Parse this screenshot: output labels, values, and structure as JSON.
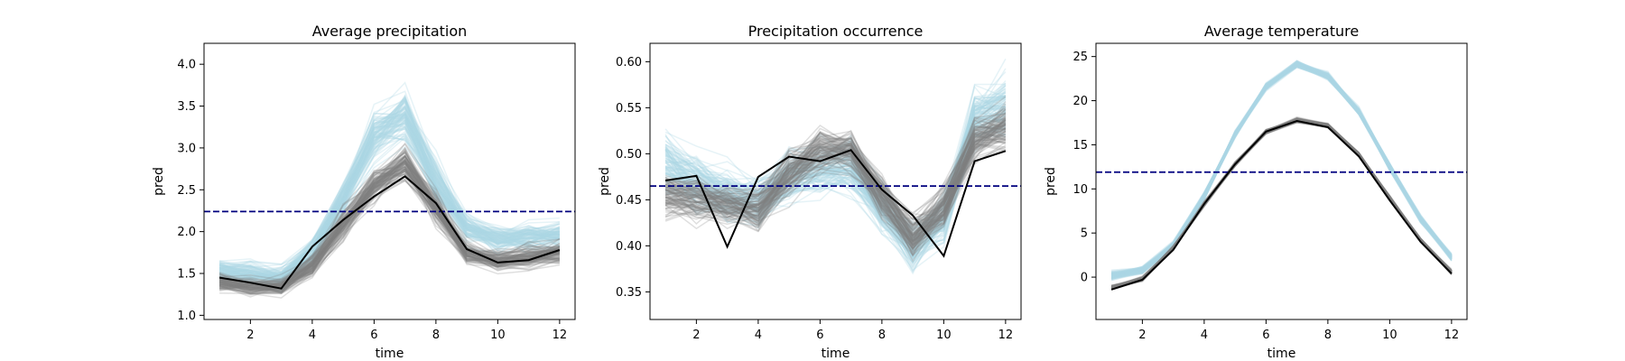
{
  "chart_data": [
    {
      "type": "line",
      "title": "Average precipitation",
      "xlabel": "time",
      "ylabel": "pred",
      "xlim": [
        0.5,
        12.5
      ],
      "ylim": [
        0.95,
        4.25
      ],
      "xticks": [
        2,
        4,
        6,
        8,
        10,
        12
      ],
      "yticks": [
        1.0,
        1.5,
        2.0,
        2.5,
        3.0,
        3.5,
        4.0
      ],
      "ytick_labels": [
        "1.0",
        "1.5",
        "2.0",
        "2.5",
        "3.0",
        "3.5",
        "4.0"
      ],
      "x": [
        1,
        2,
        3,
        4,
        5,
        6,
        7,
        8,
        9,
        10,
        11,
        12
      ],
      "reference_line": {
        "y": 2.24,
        "color": "#00007f",
        "style": "dashed"
      },
      "ensembles": [
        {
          "color": "#add8e6",
          "alpha": 0.3,
          "count": 100,
          "spread": [
            0.2,
            0.2,
            0.2,
            0.25,
            0.3,
            0.45,
            0.45,
            0.4,
            0.25,
            0.25,
            0.25,
            0.25
          ],
          "center": [
            1.55,
            1.5,
            1.45,
            1.75,
            2.4,
            3.15,
            3.4,
            2.6,
            2.05,
            1.9,
            1.95,
            1.95
          ]
        },
        {
          "color": "#808080",
          "alpha": 0.25,
          "count": 100,
          "spread": [
            0.15,
            0.15,
            0.15,
            0.2,
            0.25,
            0.3,
            0.3,
            0.3,
            0.2,
            0.18,
            0.18,
            0.2
          ],
          "center": [
            1.4,
            1.35,
            1.35,
            1.6,
            2.1,
            2.55,
            2.8,
            2.3,
            1.75,
            1.65,
            1.7,
            1.75
          ]
        }
      ],
      "series": [
        {
          "color": "#000000",
          "values": [
            1.45,
            1.39,
            1.32,
            1.82,
            2.14,
            2.42,
            2.66,
            2.34,
            1.79,
            1.63,
            1.66,
            1.78
          ]
        }
      ]
    },
    {
      "type": "line",
      "title": "Precipitation occurrence",
      "xlabel": "time",
      "ylabel": "pred",
      "xlim": [
        0.5,
        12.5
      ],
      "ylim": [
        0.32,
        0.62
      ],
      "xticks": [
        2,
        4,
        6,
        8,
        10,
        12
      ],
      "yticks": [
        0.35,
        0.4,
        0.45,
        0.5,
        0.55,
        0.6
      ],
      "ytick_labels": [
        "0.35",
        "0.40",
        "0.45",
        "0.50",
        "0.55",
        "0.60"
      ],
      "x": [
        1,
        2,
        3,
        4,
        5,
        6,
        7,
        8,
        9,
        10,
        11,
        12
      ],
      "reference_line": {
        "y": 0.465,
        "color": "#00007f",
        "style": "dashed"
      },
      "ensembles": [
        {
          "color": "#add8e6",
          "alpha": 0.3,
          "count": 100,
          "spread": [
            0.05,
            0.05,
            0.04,
            0.04,
            0.04,
            0.04,
            0.04,
            0.04,
            0.04,
            0.04,
            0.04,
            0.05
          ],
          "center": [
            0.49,
            0.47,
            0.455,
            0.45,
            0.475,
            0.48,
            0.485,
            0.44,
            0.4,
            0.43,
            0.54,
            0.55
          ]
        },
        {
          "color": "#808080",
          "alpha": 0.25,
          "count": 100,
          "spread": [
            0.035,
            0.035,
            0.03,
            0.03,
            0.035,
            0.035,
            0.035,
            0.035,
            0.035,
            0.035,
            0.035,
            0.04
          ],
          "center": [
            0.455,
            0.45,
            0.445,
            0.44,
            0.48,
            0.505,
            0.505,
            0.455,
            0.41,
            0.44,
            0.515,
            0.53
          ]
        }
      ],
      "series": [
        {
          "color": "#000000",
          "values": [
            0.471,
            0.476,
            0.399,
            0.475,
            0.497,
            0.492,
            0.504,
            0.461,
            0.433,
            0.389,
            0.492,
            0.503
          ]
        }
      ]
    },
    {
      "type": "line",
      "title": "Average temperature",
      "xlabel": "time",
      "ylabel": "pred",
      "xlim": [
        0.5,
        12.5
      ],
      "ylim": [
        -4.8,
        26.5
      ],
      "xticks": [
        2,
        4,
        6,
        8,
        10,
        12
      ],
      "yticks": [
        0,
        5,
        10,
        15,
        20,
        25
      ],
      "ytick_labels": [
        "0",
        "5",
        "10",
        "15",
        "20",
        "25"
      ],
      "x": [
        1,
        2,
        3,
        4,
        5,
        6,
        7,
        8,
        9,
        10,
        11,
        12
      ],
      "reference_line": {
        "y": 11.9,
        "color": "#00007f",
        "style": "dashed"
      },
      "ensembles": [
        {
          "color": "#add8e6",
          "alpha": 0.35,
          "count": 100,
          "spread": [
            0.7,
            0.6,
            0.6,
            0.6,
            0.6,
            0.6,
            0.7,
            0.6,
            0.6,
            0.6,
            0.6,
            0.6
          ],
          "center": [
            0.2,
            0.8,
            3.6,
            9.2,
            16.2,
            21.6,
            24.2,
            22.8,
            18.8,
            12.5,
            6.6,
            2.3
          ]
        },
        {
          "color": "#808080",
          "alpha": 0.3,
          "count": 100,
          "spread": [
            0.4,
            0.4,
            0.4,
            0.4,
            0.4,
            0.4,
            0.4,
            0.4,
            0.4,
            0.4,
            0.4,
            0.4
          ],
          "center": [
            -1.2,
            -0.2,
            3.3,
            8.3,
            12.8,
            16.5,
            17.8,
            17.2,
            13.9,
            9.0,
            4.2,
            0.6
          ]
        }
      ],
      "series": [
        {
          "color": "#000000",
          "values": [
            -1.4,
            -0.3,
            3.1,
            8.3,
            12.8,
            16.5,
            17.7,
            17.0,
            13.7,
            8.7,
            4.0,
            0.4
          ]
        }
      ]
    }
  ]
}
